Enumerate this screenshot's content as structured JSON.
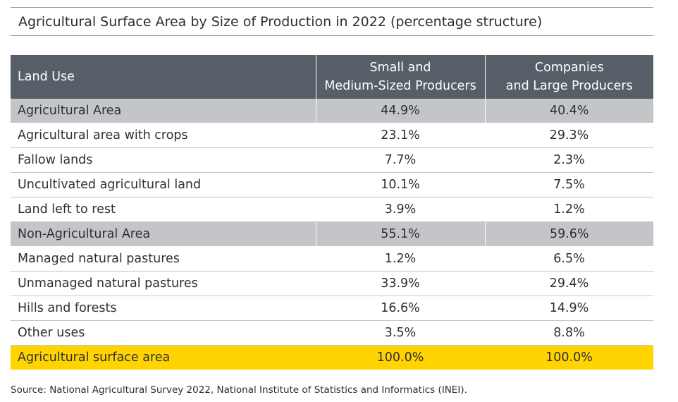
{
  "title": "Agricultural Surface Area by Size of Production in 2022 (percentage structure)",
  "table": {
    "headers": {
      "land_use": "Land Use",
      "small_line1": "Small and",
      "small_line2": "Medium-Sized Producers",
      "large_line1": "Companies",
      "large_line2": "and Large Producers"
    },
    "rows": [
      {
        "label": "Agricultural Area",
        "small": "44.9%",
        "large": "40.4%",
        "type": "group"
      },
      {
        "label": "Agricultural area with crops",
        "small": "23.1%",
        "large": "29.3%",
        "type": "item"
      },
      {
        "label": "Fallow lands",
        "small": "7.7%",
        "large": "2.3%",
        "type": "item"
      },
      {
        "label": "Uncultivated agricultural land",
        "small": "10.1%",
        "large": "7.5%",
        "type": "item"
      },
      {
        "label": "Land left to rest",
        "small": "3.9%",
        "large": "1.2%",
        "type": "item"
      },
      {
        "label": "Non-Agricultural Area",
        "small": "55.1%",
        "large": "59.6%",
        "type": "group"
      },
      {
        "label": "Managed natural pastures",
        "small": "1.2%",
        "large": "6.5%",
        "type": "item"
      },
      {
        "label": "Unmanaged natural pastures",
        "small": "33.9%",
        "large": "29.4%",
        "type": "item"
      },
      {
        "label": "Hills and forests",
        "small": "16.6%",
        "large": "14.9%",
        "type": "item"
      },
      {
        "label": "Other uses",
        "small": "3.5%",
        "large": "8.8%",
        "type": "item"
      },
      {
        "label": "Agricultural surface area",
        "small": "100.0%",
        "large": "100.0%",
        "type": "total"
      }
    ]
  },
  "source": "Source: National Agricultural Survey 2022, National Institute of Statistics and Informatics (INEI).",
  "colors": {
    "header_bg": "#565f68",
    "group_row_bg": "#c4c5c8",
    "total_row_bg": "#ffd400",
    "text": "#2e2e38"
  }
}
